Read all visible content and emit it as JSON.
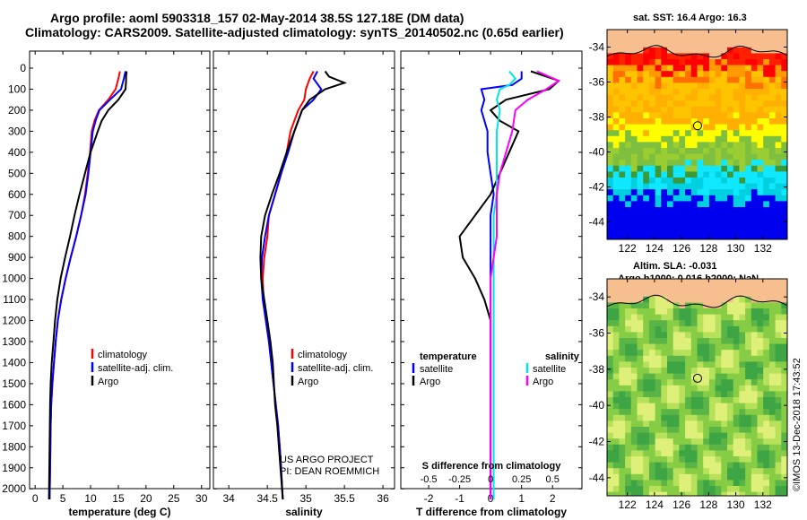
{
  "header": {
    "title_line1": "Argo profile: aoml 5903318_157 02-May-2014 38.5S 127.18E (DM data)",
    "title_line2": "Climatology: CARS2009. Satellite-adjusted climatology: synTS_20140502.nc (0.65d earlier)"
  },
  "colors": {
    "climatology": "#ff0000",
    "satellite": "#0000ff",
    "argo": "#000000",
    "sal_satellite": "#00e5e5",
    "sal_argo": "#ff00ff"
  },
  "shared_depth_ticks": [
    "0",
    "100",
    "200",
    "300",
    "400",
    "500",
    "600",
    "700",
    "800",
    "900",
    "1000",
    "1100",
    "1200",
    "1300",
    "1400",
    "1500",
    "1600",
    "1700",
    "1800",
    "1900",
    "2000"
  ],
  "chart_data": [
    {
      "type": "line",
      "id": "temperature",
      "xlabel": "temperature (deg C)",
      "xlim": [
        -1,
        31.5
      ],
      "ylim": [
        2080,
        0
      ],
      "xticks": [
        "0",
        "5",
        "10",
        "15",
        "20",
        "25",
        "30"
      ],
      "xtick_values": [
        0,
        5,
        10,
        15,
        20,
        25,
        30
      ],
      "legend": [
        "climatology",
        "satellite-adj. clim.",
        "Argo"
      ],
      "series": [
        {
          "name": "climatology",
          "color": "#ff0000",
          "x": [
            15.3,
            15.0,
            14.5,
            13.2,
            11.5,
            10.7,
            10.2,
            9.9,
            9.5,
            9.0,
            8.3,
            7.4,
            6.4,
            5.5,
            4.7,
            4.1,
            3.7,
            3.4,
            3.1,
            2.9,
            2.8,
            2.7,
            2.6
          ],
          "y": [
            15,
            50,
            100,
            150,
            200,
            250,
            300,
            400,
            500,
            600,
            700,
            800,
            900,
            1000,
            1100,
            1200,
            1300,
            1400,
            1500,
            1600,
            1700,
            1900,
            2050
          ]
        },
        {
          "name": "satellite-adj. clim.",
          "color": "#0000ff",
          "x": [
            16.3,
            16.0,
            15.5,
            13.5,
            11.6,
            10.9,
            10.4,
            10.0,
            9.6,
            9.1,
            8.3,
            7.4,
            6.4,
            5.5,
            4.7,
            4.1,
            3.7,
            3.4,
            3.1,
            2.9,
            2.8,
            2.7,
            2.6
          ],
          "y": [
            15,
            50,
            100,
            150,
            200,
            250,
            300,
            400,
            500,
            600,
            700,
            800,
            900,
            1000,
            1100,
            1200,
            1300,
            1400,
            1500,
            1600,
            1700,
            1900,
            2050
          ]
        },
        {
          "name": "Argo",
          "color": "#000000",
          "x": [
            16.5,
            16.4,
            16.4,
            16.3,
            15.0,
            13.2,
            12.0,
            11.3,
            10.0,
            9.0,
            8.0,
            7.1,
            6.3,
            5.4,
            4.6,
            4.0,
            3.6,
            3.3,
            3.0,
            2.8,
            2.7,
            2.6,
            2.5
          ],
          "y": [
            15,
            40,
            60,
            100,
            150,
            200,
            250,
            300,
            400,
            500,
            600,
            700,
            800,
            900,
            1000,
            1100,
            1200,
            1300,
            1400,
            1500,
            1600,
            1800,
            2050
          ]
        }
      ]
    },
    {
      "type": "line",
      "id": "salinity",
      "xlabel": "salinity",
      "xlim": [
        33.8,
        36.15
      ],
      "ylim": [
        2080,
        0
      ],
      "xticks": [
        "34",
        "34.5",
        "35",
        "35.5",
        "36"
      ],
      "xtick_values": [
        34,
        34.5,
        35,
        35.5,
        36
      ],
      "legend": [
        "climatology",
        "satellite-adj. clim.",
        "Argo"
      ],
      "annotation": [
        "US ARGO PROJECT",
        "PI: DEAN ROEMMICH"
      ],
      "series": [
        {
          "name": "climatology",
          "color": "#ff0000",
          "x": [
            35.1,
            35.05,
            35.0,
            34.98,
            34.9,
            34.8,
            34.75,
            34.68,
            34.6,
            34.52,
            34.5,
            34.46,
            34.44,
            34.45,
            34.48,
            34.52,
            34.55,
            34.58,
            34.61,
            34.64,
            34.67,
            34.7
          ],
          "y": [
            15,
            50,
            100,
            150,
            200,
            300,
            400,
            500,
            600,
            700,
            800,
            900,
            1000,
            1100,
            1200,
            1300,
            1400,
            1500,
            1600,
            1700,
            1850,
            2050
          ]
        },
        {
          "name": "satellite-adj. clim.",
          "color": "#0000ff",
          "x": [
            35.15,
            35.1,
            35.2,
            35.1,
            34.95,
            34.85,
            34.77,
            34.68,
            34.6,
            34.52,
            34.47,
            34.43,
            34.42,
            34.44,
            34.48,
            34.52,
            34.55,
            34.58,
            34.61,
            34.64,
            34.67,
            34.7
          ],
          "y": [
            15,
            50,
            100,
            150,
            200,
            300,
            400,
            500,
            600,
            700,
            800,
            900,
            1000,
            1100,
            1200,
            1300,
            1400,
            1500,
            1600,
            1700,
            1850,
            2050
          ]
        },
        {
          "name": "Argo",
          "color": "#000000",
          "x": [
            35.25,
            35.3,
            35.5,
            35.25,
            35.05,
            34.95,
            34.85,
            34.75,
            34.66,
            34.56,
            34.47,
            34.42,
            34.41,
            34.42,
            34.46,
            34.5,
            34.54,
            34.57,
            34.6,
            34.63,
            34.66,
            34.7
          ],
          "y": [
            15,
            40,
            70,
            100,
            150,
            200,
            300,
            400,
            500,
            600,
            700,
            800,
            900,
            1000,
            1100,
            1200,
            1300,
            1400,
            1600,
            1700,
            1850,
            2050
          ]
        }
      ]
    },
    {
      "type": "line",
      "id": "difference",
      "xlabel": "T difference from climatology",
      "xlim": [
        -2.9,
        2.95
      ],
      "ylim": [
        2080,
        0
      ],
      "xticks": [
        "-2",
        "-1",
        "0",
        "1",
        "2"
      ],
      "xtick_values": [
        -2,
        -1,
        0,
        1,
        2
      ],
      "top_axis_label": "S difference from climatology",
      "top_axis_ticks": [
        "-0.5",
        "-0.25",
        "0",
        "0.25",
        "0.5"
      ],
      "top_axis_tick_values": [
        -2,
        -1,
        0,
        1,
        2
      ],
      "legend_left_title": "temperature",
      "legend_right_title": "salinity",
      "legend_left": [
        "satellite",
        "Argo"
      ],
      "legend_right": [
        "satellite",
        "Argo"
      ],
      "series": [
        {
          "name": "temperature satellite",
          "color": "#0000ff",
          "x": [
            1.0,
            1.0,
            0.7,
            -0.3,
            -0.2,
            -0.3,
            -0.1,
            -0.1,
            0,
            0.1,
            0,
            0,
            0,
            0,
            0,
            0,
            0,
            0,
            0,
            0,
            0
          ],
          "y": [
            15,
            50,
            80,
            100,
            150,
            200,
            300,
            400,
            500,
            600,
            700,
            800,
            900,
            1000,
            1100,
            1200,
            1400,
            1600,
            1800,
            1900,
            2050
          ]
        },
        {
          "name": "temperature Argo",
          "color": "#000000",
          "x": [
            1.3,
            2.2,
            1.9,
            0.5,
            0.0,
            0.3,
            0.9,
            0.6,
            0.3,
            0.0,
            -0.5,
            -1.0,
            -0.9,
            -0.5,
            -0.2,
            0.0,
            0.0,
            0.0,
            0.0,
            0.0,
            0.0
          ],
          "y": [
            15,
            60,
            100,
            150,
            200,
            250,
            300,
            400,
            500,
            600,
            700,
            800,
            900,
            1000,
            1100,
            1200,
            1400,
            1600,
            1800,
            1900,
            2050
          ]
        },
        {
          "name": "salinity satellite",
          "color": "#00e5e5",
          "x": [
            0.6,
            0.8,
            0.6,
            0.3,
            0.2,
            0.3,
            0.2,
            0.2,
            0.2,
            0.2,
            0.1,
            0.1,
            0.1,
            0.1,
            0.1,
            0.1,
            0.1,
            0.1,
            0.1,
            0.1,
            0.1
          ],
          "y": [
            15,
            50,
            80,
            100,
            150,
            200,
            300,
            400,
            500,
            600,
            700,
            800,
            900,
            1000,
            1100,
            1200,
            1400,
            1600,
            1800,
            1900,
            2050
          ]
        },
        {
          "name": "salinity Argo",
          "color": "#ff00ff",
          "x": [
            1.5,
            2.2,
            1.8,
            1.2,
            0.8,
            0.7,
            0.5,
            0.3,
            0.2,
            0.2,
            0.2,
            0.1,
            0.0,
            0.0,
            0.0,
            0.0,
            0.0,
            0.0,
            0.0,
            0.0
          ],
          "y": [
            15,
            60,
            100,
            150,
            200,
            300,
            400,
            500,
            600,
            700,
            800,
            900,
            1000,
            1100,
            1200,
            1400,
            1600,
            1800,
            1900,
            2050
          ]
        }
      ]
    }
  ],
  "maps": [
    {
      "id": "sst-map",
      "title": "sat. SST: 16.4 Argo: 16.3",
      "x_ticks": [
        "122",
        "124",
        "126",
        "128",
        "130",
        "132"
      ],
      "x_tick_values": [
        122,
        124,
        126,
        128,
        130,
        132
      ],
      "y_ticks": [
        "-34",
        "-36",
        "-38",
        "-40",
        "-42",
        "-44"
      ],
      "y_tick_values": [
        -34,
        -36,
        -38,
        -40,
        -42,
        -44
      ],
      "xlim": [
        120.5,
        133.8
      ],
      "ylim": [
        -45,
        -33
      ],
      "marker": {
        "lon": 127.18,
        "lat": -38.5
      }
    },
    {
      "id": "sla-map",
      "title_line1": "Altim. SLA: -0.031",
      "title_line2": "Argo h1000: 0.016 h2000: NaN",
      "x_ticks": [
        "122",
        "124",
        "126",
        "128",
        "130",
        "132"
      ],
      "x_tick_values": [
        122,
        124,
        126,
        128,
        130,
        132
      ],
      "y_ticks": [
        "-34",
        "-36",
        "-38",
        "-40",
        "-42",
        "-44"
      ],
      "y_tick_values": [
        -34,
        -36,
        -38,
        -40,
        -42,
        -44
      ],
      "xlim": [
        120.5,
        133.8
      ],
      "ylim": [
        -45,
        -33
      ],
      "marker": {
        "lon": 127.18,
        "lat": -38.5
      }
    }
  ],
  "footer": {
    "credit": "©IMOS 13-Dec-2018 17:43:52"
  }
}
